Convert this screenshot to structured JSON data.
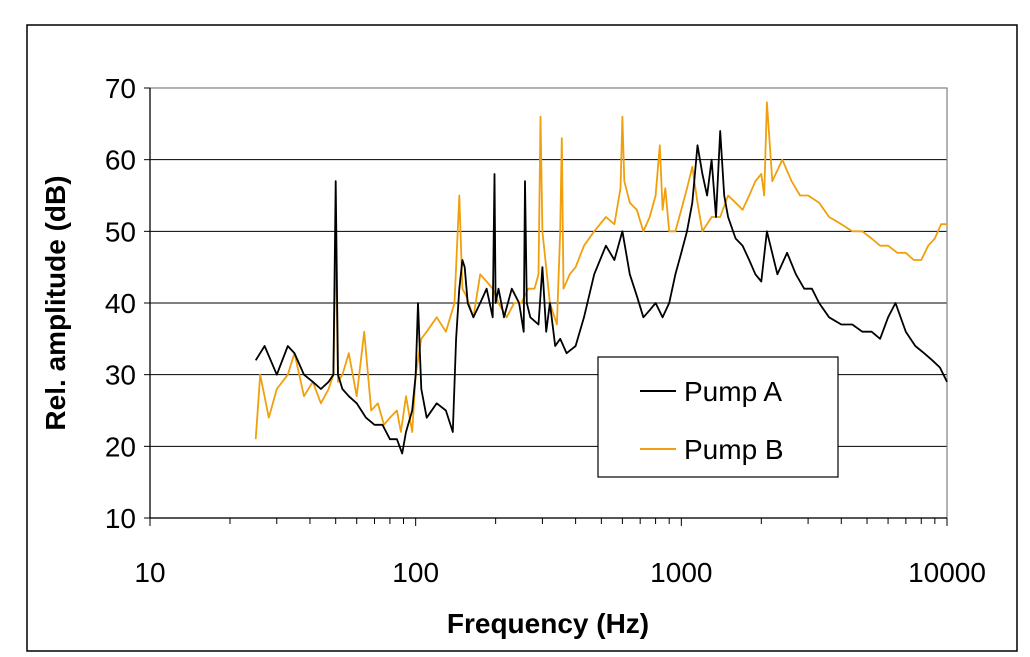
{
  "chart_data": {
    "type": "line",
    "title": "",
    "xlabel": "Frequency (Hz)",
    "ylabel": "Rel. amplitude (dB)",
    "x_scale": "log",
    "xlim": [
      10,
      10000
    ],
    "ylim": [
      10,
      70
    ],
    "x_ticks": [
      10,
      100,
      1000,
      10000
    ],
    "x_tick_labels": [
      "10",
      "100",
      "1000",
      "10000"
    ],
    "y_ticks": [
      10,
      20,
      30,
      40,
      50,
      60,
      70
    ],
    "y_tick_labels": [
      "10",
      "20",
      "30",
      "40",
      "50",
      "60",
      "70"
    ],
    "grid": "horizontal",
    "legend_position": "center-right",
    "series": [
      {
        "name": "Pump A",
        "color": "#000000",
        "x": [
          25,
          27,
          30,
          33,
          35,
          38,
          41,
          44,
          47,
          49,
          50,
          51,
          53,
          56,
          60,
          65,
          70,
          75,
          80,
          85,
          89,
          92,
          97,
          100,
          102,
          105,
          110,
          120,
          130,
          138,
          142,
          146,
          150,
          153,
          157,
          165,
          175,
          185,
          195,
          198,
          200,
          205,
          215,
          230,
          245,
          255,
          258,
          262,
          270,
          290,
          300,
          310,
          320,
          335,
          350,
          370,
          400,
          430,
          470,
          520,
          560,
          600,
          640,
          680,
          720,
          760,
          800,
          850,
          900,
          950,
          1000,
          1050,
          1100,
          1150,
          1200,
          1250,
          1300,
          1350,
          1400,
          1450,
          1500,
          1600,
          1700,
          1800,
          1900,
          2000,
          2100,
          2300,
          2500,
          2700,
          2900,
          3100,
          3300,
          3600,
          4000,
          4400,
          4800,
          5200,
          5600,
          6000,
          6400,
          7000,
          7600,
          8200,
          8800,
          9400,
          10000
        ],
        "y": [
          32,
          34,
          30,
          34,
          33,
          30,
          29,
          28,
          29,
          30,
          57,
          30,
          28,
          27,
          26,
          24,
          23,
          23,
          21,
          21,
          19,
          22,
          25,
          30,
          40,
          28,
          24,
          26,
          25,
          22,
          35,
          42,
          46,
          45,
          40,
          38,
          40,
          42,
          38,
          58,
          40,
          42,
          38,
          42,
          40,
          36,
          57,
          40,
          38,
          37,
          45,
          36,
          40,
          34,
          35,
          33,
          34,
          38,
          44,
          48,
          46,
          50,
          44,
          41,
          38,
          39,
          40,
          38,
          40,
          44,
          47,
          50,
          54,
          62,
          58,
          55,
          60,
          52,
          64,
          55,
          52,
          49,
          48,
          46,
          44,
          43,
          50,
          44,
          47,
          44,
          42,
          42,
          40,
          38,
          37,
          37,
          36,
          36,
          35,
          38,
          40,
          36,
          34,
          33,
          32,
          31,
          29
        ]
      },
      {
        "name": "Pump B",
        "color": "#f0a00c",
        "x": [
          25,
          26,
          28,
          30,
          33,
          35,
          38,
          41,
          44,
          47,
          49,
          50,
          51,
          53,
          56,
          60,
          64,
          68,
          72,
          76,
          80,
          85,
          88,
          92,
          97,
          100,
          105,
          110,
          120,
          130,
          140,
          146,
          150,
          155,
          165,
          175,
          185,
          195,
          205,
          220,
          235,
          250,
          265,
          280,
          290,
          295,
          300,
          320,
          340,
          350,
          355,
          360,
          380,
          400,
          430,
          470,
          520,
          560,
          590,
          600,
          610,
          640,
          680,
          720,
          760,
          800,
          830,
          850,
          870,
          900,
          950,
          1000,
          1050,
          1100,
          1150,
          1200,
          1300,
          1400,
          1500,
          1600,
          1700,
          1800,
          1900,
          2000,
          2050,
          2100,
          2200,
          2400,
          2600,
          2800,
          3000,
          3300,
          3600,
          4000,
          4400,
          4800,
          5200,
          5600,
          6000,
          6500,
          7000,
          7500,
          8000,
          8500,
          9000,
          9500,
          10000
        ],
        "y": [
          21,
          30,
          24,
          28,
          30,
          33,
          27,
          29,
          26,
          28,
          30,
          50,
          29,
          30,
          33,
          27,
          36,
          25,
          26,
          23,
          24,
          25,
          22,
          27,
          22,
          30,
          35,
          36,
          38,
          36,
          40,
          55,
          42,
          41,
          38,
          44,
          43,
          42,
          40,
          38,
          40,
          40,
          42,
          42,
          44,
          66,
          50,
          40,
          37,
          50,
          63,
          42,
          44,
          45,
          48,
          50,
          52,
          51,
          56,
          66,
          57,
          54,
          53,
          50,
          52,
          55,
          62,
          53,
          56,
          50,
          50,
          53,
          56,
          59,
          54,
          50,
          52,
          52,
          55,
          54,
          53,
          55,
          57,
          58,
          55,
          68,
          57,
          60,
          57,
          55,
          55,
          54,
          52,
          51,
          50,
          50,
          49,
          48,
          48,
          47,
          47,
          46,
          46,
          48,
          49,
          51,
          51
        ]
      }
    ]
  }
}
